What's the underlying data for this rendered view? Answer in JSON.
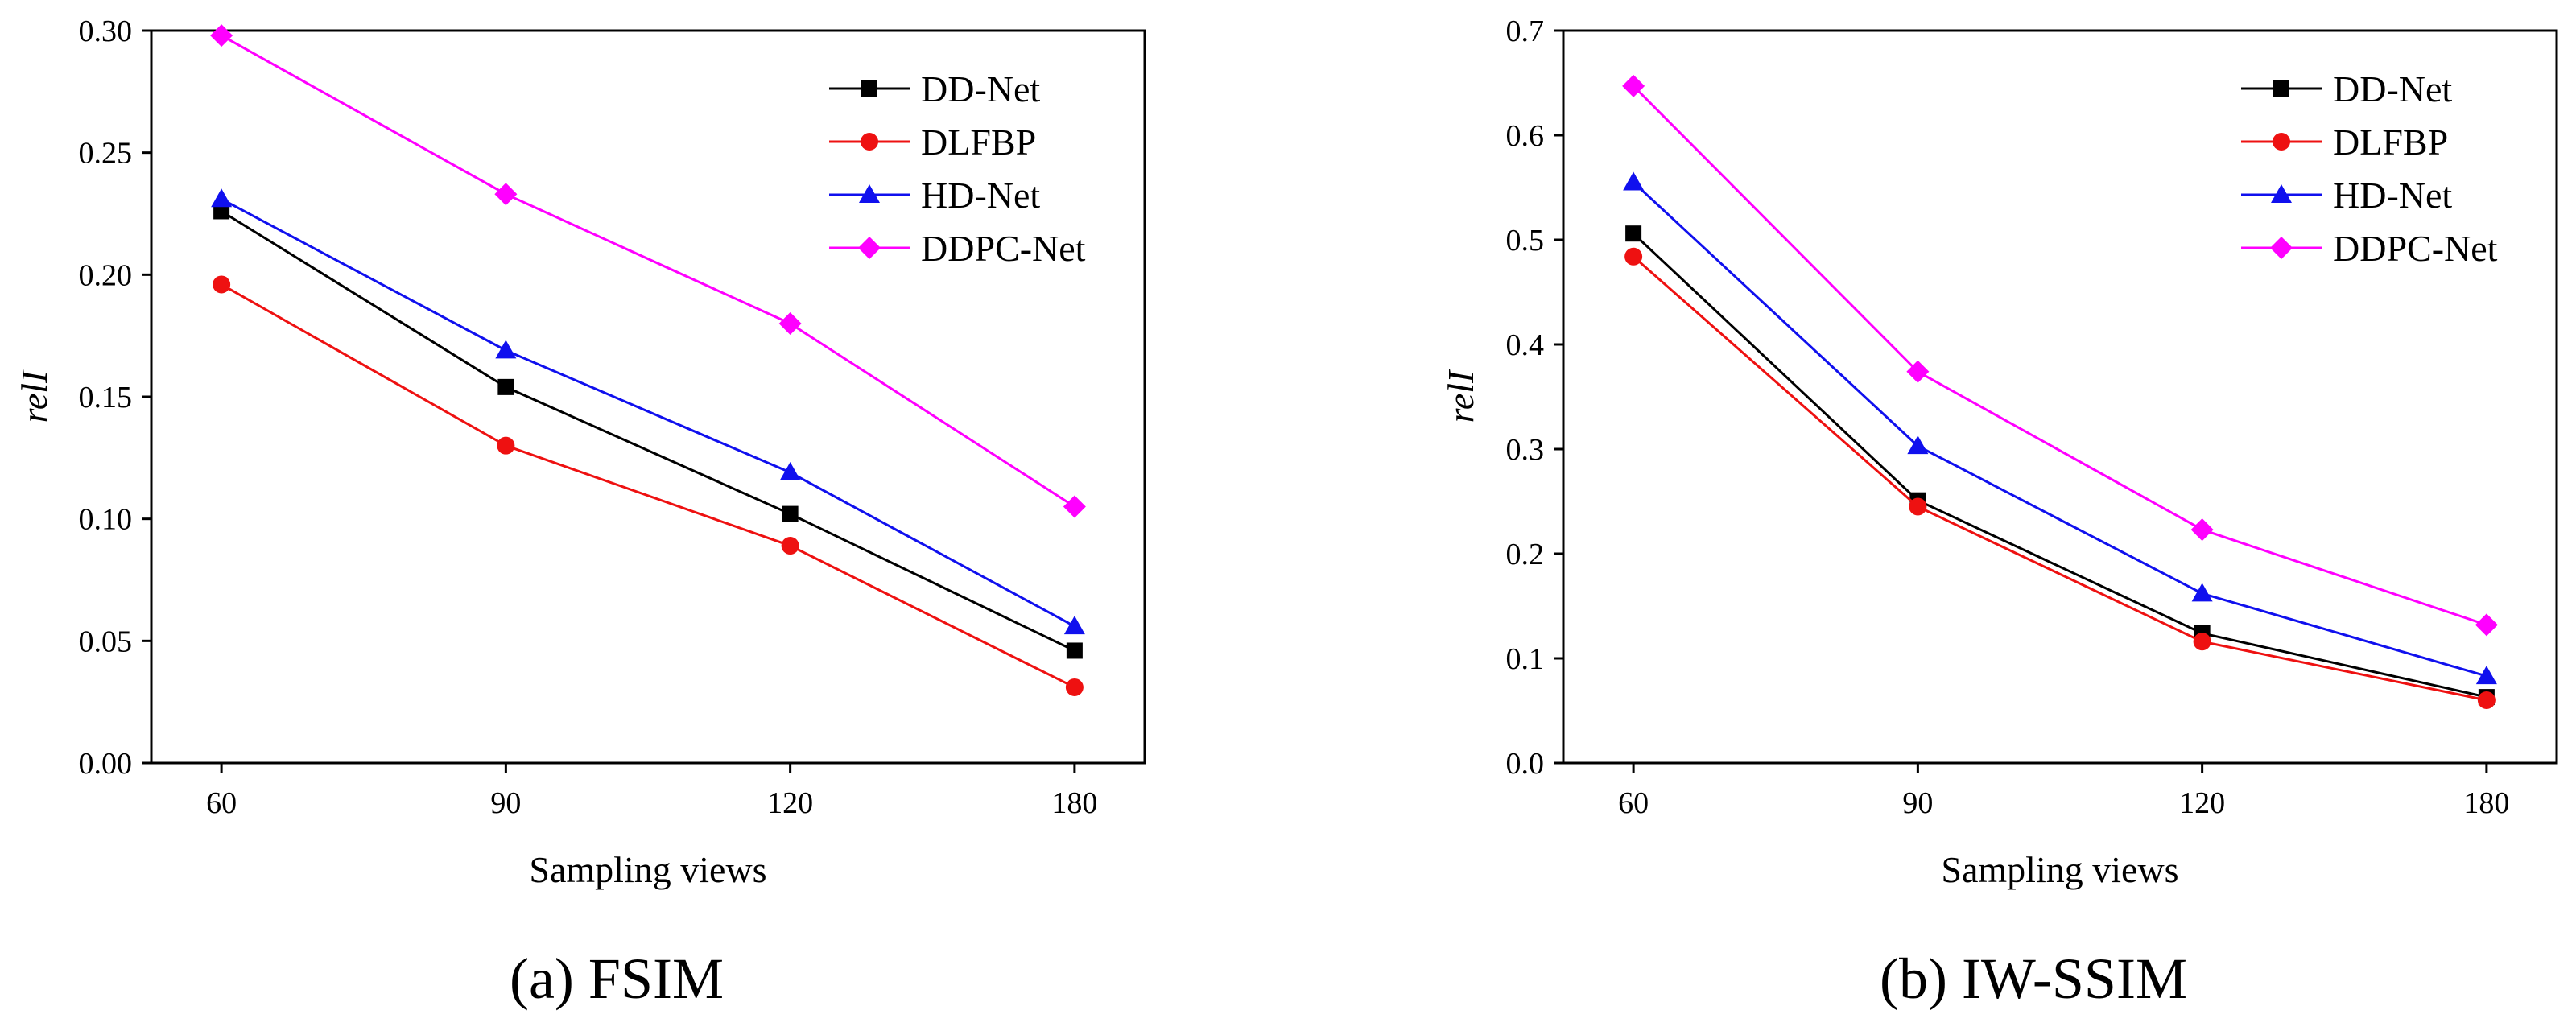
{
  "chart_data": [
    {
      "type": "line",
      "caption": "(a) FSIM",
      "xlabel": "Sampling views",
      "ylabel": "relI",
      "categories": [
        "60",
        "90",
        "120",
        "180"
      ],
      "ylim": [
        0,
        0.3
      ],
      "yticks": [
        "0.00",
        "0.05",
        "0.10",
        "0.15",
        "0.20",
        "0.25",
        "0.30"
      ],
      "ytick_values": [
        0,
        0.05,
        0.1,
        0.15,
        0.2,
        0.25,
        0.3
      ],
      "legend_position": "top-right",
      "series": [
        {
          "name": "DD-Net",
          "color": "#000000",
          "marker": "square",
          "values": [
            0.226,
            0.154,
            0.102,
            0.046
          ]
        },
        {
          "name": "DLFBP",
          "color": "#ee1111",
          "marker": "circle",
          "values": [
            0.196,
            0.13,
            0.089,
            0.031
          ]
        },
        {
          "name": "HD-Net",
          "color": "#1010ee",
          "marker": "triangle",
          "values": [
            0.231,
            0.169,
            0.119,
            0.056
          ]
        },
        {
          "name": "DDPC-Net",
          "color": "#ff00ff",
          "marker": "diamond",
          "values": [
            0.298,
            0.233,
            0.18,
            0.105
          ]
        }
      ]
    },
    {
      "type": "line",
      "caption": "(b) IW-SSIM",
      "xlabel": "Sampling views",
      "ylabel": "relI",
      "categories": [
        "60",
        "90",
        "120",
        "180"
      ],
      "ylim": [
        0,
        0.7
      ],
      "yticks": [
        "0.0",
        "0.1",
        "0.2",
        "0.3",
        "0.4",
        "0.5",
        "0.6",
        "0.7"
      ],
      "ytick_values": [
        0,
        0.1,
        0.2,
        0.3,
        0.4,
        0.5,
        0.6,
        0.7
      ],
      "legend_position": "top-right",
      "series": [
        {
          "name": "DD-Net",
          "color": "#000000",
          "marker": "square",
          "values": [
            0.506,
            0.251,
            0.124,
            0.063
          ]
        },
        {
          "name": "DLFBP",
          "color": "#ee1111",
          "marker": "circle",
          "values": [
            0.484,
            0.245,
            0.116,
            0.06
          ]
        },
        {
          "name": "HD-Net",
          "color": "#1010ee",
          "marker": "triangle",
          "values": [
            0.555,
            0.303,
            0.162,
            0.083
          ]
        },
        {
          "name": "DDPC-Net",
          "color": "#ff00ff",
          "marker": "diamond",
          "values": [
            0.647,
            0.374,
            0.223,
            0.132
          ]
        }
      ]
    }
  ]
}
